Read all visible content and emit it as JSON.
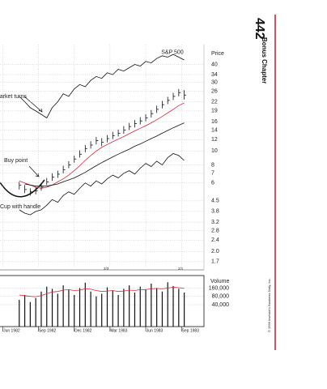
{
  "page_number": "442",
  "chapter": "Bonus Chapter",
  "copyright": "© 1999 Investor's Business Daily, Inc.",
  "chart_data": {
    "type": "ohlc",
    "y_label": "Price",
    "log_scale": true,
    "grid": true,
    "x": [
      -10,
      -8,
      -6,
      -4,
      -2,
      0,
      2,
      4,
      6,
      8,
      10,
      12,
      14,
      16,
      18,
      20,
      22,
      24,
      26,
      28,
      30,
      32,
      34,
      36,
      38,
      40,
      42,
      44,
      46,
      48,
      50
    ],
    "xlim": [
      -17,
      56
    ],
    "xticks": [
      {
        "value": -16,
        "label": "Jun 1982"
      },
      {
        "value": -3,
        "label": "Sep 1982"
      },
      {
        "value": 10,
        "label": "Dec 1982"
      },
      {
        "value": 23,
        "label": "Mar 1983"
      },
      {
        "value": 36,
        "label": "Jun 1983"
      },
      {
        "value": 49,
        "label": "Sep 1983"
      }
    ],
    "ylim": [
      1.55,
      55
    ],
    "yticks": [
      40,
      34,
      30,
      26,
      22,
      19,
      16,
      14,
      12,
      10,
      8,
      7,
      6,
      4.5,
      3.8,
      3.2,
      2.8,
      2.4,
      {
        "value": 2,
        "label": "2.0"
      },
      1.7
    ],
    "color": "#111",
    "high": [
      6.1,
      5.8,
      5.5,
      5.6,
      5.9,
      6.5,
      7.0,
      7.3,
      7.9,
      8.5,
      9.3,
      10.1,
      11.0,
      11.7,
      12.5,
      12.3,
      12.9,
      13.6,
      14.1,
      14.9,
      15.7,
      16.4,
      17.2,
      18.0,
      19.3,
      20.7,
      22.3,
      23.8,
      25.4,
      27.0,
      26.5
    ],
    "low": [
      5.4,
      5.1,
      4.9,
      5.0,
      5.3,
      5.8,
      6.2,
      6.5,
      7.0,
      7.6,
      8.3,
      9.0,
      9.8,
      10.4,
      11.1,
      10.8,
      11.5,
      12.1,
      12.6,
      13.2,
      14.0,
      14.6,
      15.3,
      16.1,
      17.1,
      18.4,
      19.8,
      21.2,
      22.6,
      24.0,
      22.8
    ],
    "close": [
      5.8,
      5.4,
      5.2,
      5.3,
      5.6,
      6.1,
      6.6,
      6.9,
      7.4,
      8.0,
      8.8,
      9.5,
      10.4,
      11.0,
      11.8,
      11.5,
      12.2,
      12.8,
      13.3,
      14.0,
      14.8,
      15.5,
      16.2,
      17.0,
      18.2,
      19.5,
      21.0,
      22.5,
      24.0,
      25.5,
      24.5
    ],
    "series": [
      {
        "color": "#d9263a",
        "values": [
          6.2,
          6.0,
          5.8,
          5.6,
          5.5,
          5.6,
          5.8,
          6.1,
          6.4,
          6.8,
          7.3,
          7.9,
          8.6,
          9.3,
          10.0,
          10.6,
          11.1,
          11.6,
          12.1,
          12.6,
          13.2,
          13.8,
          14.4,
          15.0,
          15.7,
          16.5,
          17.4,
          18.4,
          19.5,
          20.7,
          21.6
        ]
      },
      {
        "color": "#111",
        "values": [
          null,
          5.9,
          5.8,
          5.7,
          5.7,
          5.7,
          5.8,
          5.9,
          6.1,
          6.3,
          6.5,
          6.8,
          7.1,
          7.5,
          7.9,
          8.3,
          8.7,
          9.1,
          9.5,
          9.9,
          10.3,
          10.8,
          11.2,
          11.7,
          12.2,
          12.7,
          13.3,
          13.9,
          14.5,
          15.1,
          15.7
        ]
      },
      {
        "color": "#111",
        "values": [
          3.9,
          3.7,
          3.6,
          3.8,
          3.9,
          4.2,
          4.6,
          4.4,
          4.9,
          5.2,
          5.0,
          5.5,
          6.0,
          5.7,
          6.2,
          5.9,
          6.4,
          6.8,
          6.5,
          7.0,
          7.3,
          6.9,
          7.6,
          8.2,
          7.8,
          8.5,
          8.0,
          9.0,
          9.6,
          9.3,
          8.6
        ]
      },
      {
        "name": "S&P 500",
        "color": "#111",
        "values": [
          24,
          22,
          20,
          19,
          18,
          17,
          20,
          22,
          25,
          24,
          27,
          29,
          28,
          31,
          33,
          32,
          35,
          34,
          37,
          36,
          38,
          40,
          39,
          42,
          41,
          44,
          46,
          45,
          47,
          45,
          43
        ]
      }
    ],
    "annotations": [
      "Market turns",
      "Buy point",
      "Cup with handle",
      "2/3",
      "2/1"
    ],
    "volume": {
      "label": "Volume",
      "color": "#111",
      "ma_color": "#d9263a",
      "ylim": [
        6500,
        370000
      ],
      "yticks": [
        {
          "value": 160000,
          "label": "160,000"
        },
        {
          "value": 80000,
          "label": "80,000"
        },
        {
          "value": 40000,
          "label": "40,000"
        }
      ],
      "values": [
        60000,
        90000,
        50000,
        70000,
        120000,
        180000,
        150000,
        100000,
        200000,
        140000,
        90000,
        160000,
        250000,
        120000,
        80000,
        100000,
        170000,
        130000,
        90000,
        150000,
        200000,
        110000,
        180000,
        140000,
        230000,
        160000,
        120000,
        260000,
        190000,
        150000,
        110000
      ],
      "ma": [
        90000,
        85000,
        80000,
        78000,
        85000,
        100000,
        115000,
        120000,
        135000,
        140000,
        130000,
        135000,
        150000,
        145000,
        130000,
        120000,
        125000,
        130000,
        120000,
        125000,
        135000,
        130000,
        140000,
        140000,
        150000,
        155000,
        150000,
        160000,
        170000,
        165000,
        155000
      ]
    }
  }
}
